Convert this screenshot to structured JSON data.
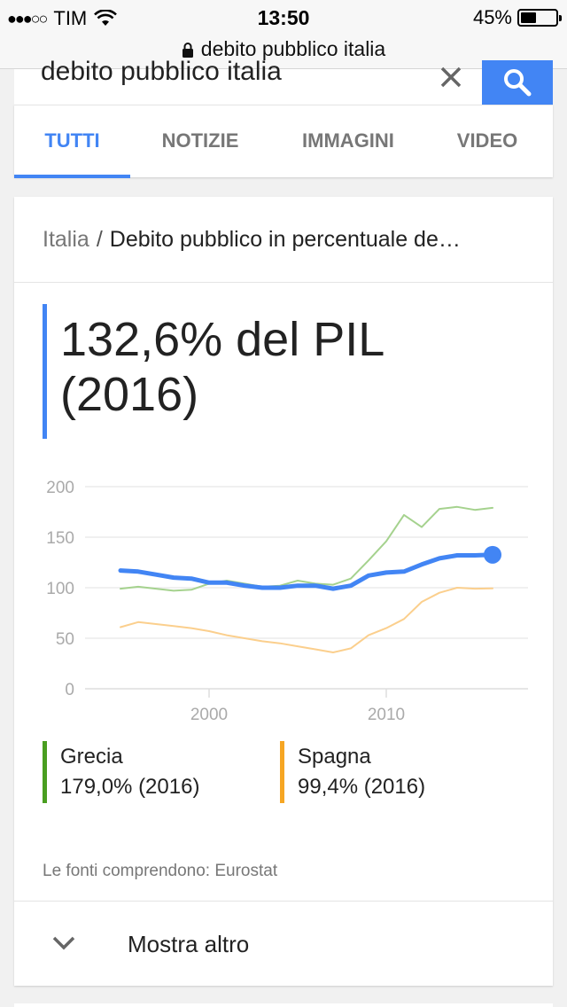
{
  "status_bar": {
    "signal": "●●●○○",
    "carrier": "TIM",
    "time": "13:50",
    "battery_text": "45%",
    "battery_level": 0.45
  },
  "browser": {
    "url": "debito pubblico italia"
  },
  "search": {
    "query": "debito pubblico italia"
  },
  "tabs": [
    {
      "label": "TUTTI",
      "active": true
    },
    {
      "label": "NOTIZIE",
      "active": false
    },
    {
      "label": "IMMAGINI",
      "active": false
    },
    {
      "label": "VIDEO",
      "active": false
    }
  ],
  "result": {
    "breadcrumb_root": "Italia",
    "breadcrumb_separator": "/",
    "breadcrumb_current": "Debito pubblico in percentuale de…",
    "answer_line1": "132,6% del PIL",
    "answer_line2": "(2016)",
    "legend": [
      {
        "name": "Grecia",
        "value": "179,0% (2016)",
        "color": "#4a9e21"
      },
      {
        "name": "Spagna",
        "value": "99,4% (2016)",
        "color": "#f6a623"
      }
    ],
    "sources": "Le fonti comprendono: Eurostat",
    "show_more": "Mostra altro"
  },
  "colors": {
    "accent": "#4285f4",
    "grecia_line": "#a5d28e",
    "spagna_line": "#fbcf8d"
  },
  "chart_data": {
    "type": "line",
    "x_ticks": [
      2000,
      2010
    ],
    "y_ticks": [
      0,
      50,
      100,
      150,
      200
    ],
    "xlim": [
      1994,
      2017
    ],
    "ylim": [
      0,
      200
    ],
    "grid": true,
    "series": [
      {
        "name": "Grecia",
        "color": "#a5d28e",
        "x": [
          1995,
          1996,
          1997,
          1998,
          1999,
          2000,
          2001,
          2002,
          2003,
          2004,
          2005,
          2006,
          2007,
          2008,
          2009,
          2010,
          2011,
          2012,
          2013,
          2014,
          2015,
          2016
        ],
        "values": [
          99,
          101,
          99,
          97,
          98,
          104,
          107,
          104,
          101,
          102,
          107,
          104,
          103,
          109,
          127,
          146,
          172,
          160,
          178,
          180,
          177,
          179
        ]
      },
      {
        "name": "Spagna",
        "color": "#fbcf8d",
        "x": [
          1995,
          1996,
          1997,
          1998,
          1999,
          2000,
          2001,
          2002,
          2003,
          2004,
          2005,
          2006,
          2007,
          2008,
          2009,
          2010,
          2011,
          2012,
          2013,
          2014,
          2015,
          2016
        ],
        "values": [
          61,
          66,
          64,
          62,
          60,
          57,
          53,
          50,
          47,
          45,
          42,
          39,
          36,
          40,
          53,
          60,
          69,
          86,
          95,
          100,
          99,
          99.4
        ]
      },
      {
        "name": "Italia",
        "color": "#4285f4",
        "x": [
          1995,
          1996,
          1997,
          1998,
          1999,
          2000,
          2001,
          2002,
          2003,
          2004,
          2005,
          2006,
          2007,
          2008,
          2009,
          2010,
          2011,
          2012,
          2013,
          2014,
          2015,
          2016
        ],
        "values": [
          117,
          116,
          113,
          110,
          109,
          105,
          105,
          102,
          100,
          100,
          102,
          102,
          99,
          102,
          112,
          115,
          116,
          123,
          129,
          132,
          132,
          132.6
        ]
      }
    ]
  }
}
